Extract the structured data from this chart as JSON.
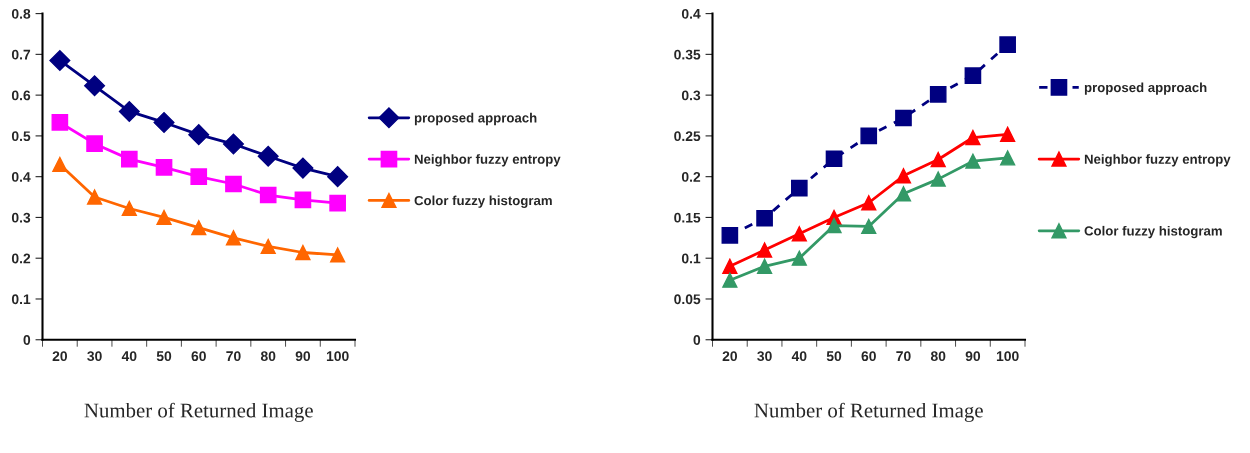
{
  "chart_data": [
    {
      "type": "line",
      "xlabel": "Number of Returned Image",
      "categories": [
        "20",
        "30",
        "40",
        "50",
        "60",
        "70",
        "80",
        "90",
        "100"
      ],
      "ylim": [
        0,
        0.8
      ],
      "yticks": [
        0,
        0.1,
        0.2,
        0.3,
        0.4,
        0.5,
        0.6,
        0.7,
        0.8
      ],
      "grid": false,
      "legend": "right",
      "series": [
        {
          "name": "proposed approach",
          "color": "#000080",
          "marker": "diamond",
          "line_style": "solid",
          "values": [
            0.685,
            0.623,
            0.56,
            0.533,
            0.503,
            0.48,
            0.45,
            0.421,
            0.4
          ]
        },
        {
          "name": "Neighbor fuzzy entropy",
          "color": "#ff00ff",
          "marker": "square",
          "line_style": "solid",
          "values": [
            0.533,
            0.481,
            0.443,
            0.423,
            0.4,
            0.382,
            0.355,
            0.343,
            0.335
          ]
        },
        {
          "name": "Color fuzzy histogram",
          "color": "#ff6600",
          "marker": "triangle",
          "line_style": "solid",
          "values": [
            0.43,
            0.35,
            0.322,
            0.3,
            0.275,
            0.25,
            0.229,
            0.214,
            0.208
          ]
        }
      ]
    },
    {
      "type": "line",
      "xlabel": "Number of Returned Image",
      "categories": [
        "20",
        "30",
        "40",
        "50",
        "60",
        "70",
        "80",
        "90",
        "100"
      ],
      "ylim": [
        0,
        0.4
      ],
      "yticks": [
        0,
        0.05,
        0.1,
        0.15,
        0.2,
        0.25,
        0.3,
        0.35,
        0.4
      ],
      "grid": false,
      "legend": "right",
      "series": [
        {
          "name": "proposed approach",
          "color": "#000080",
          "marker": "square",
          "line_style": "dashed",
          "values": [
            0.128,
            0.149,
            0.186,
            0.222,
            0.25,
            0.272,
            0.301,
            0.324,
            0.362
          ]
        },
        {
          "name": "Neighbor fuzzy entropy",
          "color": "#ff0000",
          "marker": "triangle",
          "line_style": "solid",
          "values": [
            0.09,
            0.11,
            0.13,
            0.15,
            0.168,
            0.201,
            0.221,
            0.248,
            0.252
          ]
        },
        {
          "name": "Color fuzzy histogram",
          "color": "#339966",
          "marker": "triangle",
          "line_style": "solid",
          "values": [
            0.073,
            0.09,
            0.1,
            0.14,
            0.139,
            0.179,
            0.197,
            0.219,
            0.223
          ]
        }
      ]
    }
  ]
}
